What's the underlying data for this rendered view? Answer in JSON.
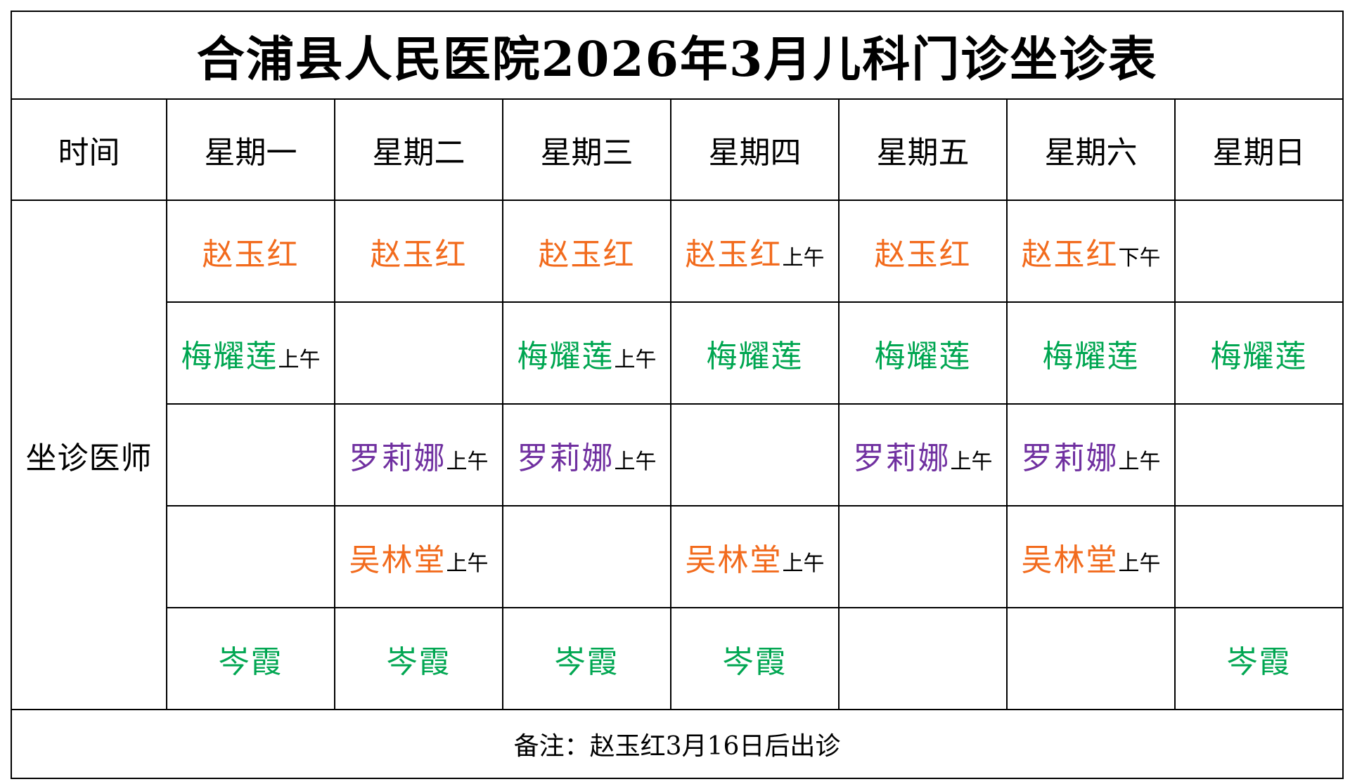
{
  "title": "合浦县人民医院2026年3月儿科门诊坐诊表",
  "header": {
    "time_label": "时间",
    "days": [
      "星期一",
      "星期二",
      "星期三",
      "星期四",
      "星期五",
      "星期六",
      "星期日"
    ]
  },
  "side_label": "坐诊医师",
  "colors": {
    "orange": "#F26B1D",
    "green": "#00A651",
    "purple": "#7030A0"
  },
  "schedule": [
    [
      {
        "name": "赵玉红",
        "note": "",
        "color": "orange"
      },
      {
        "name": "赵玉红",
        "note": "",
        "color": "orange"
      },
      {
        "name": "赵玉红",
        "note": "",
        "color": "orange"
      },
      {
        "name": "赵玉红",
        "note": "上午",
        "color": "orange"
      },
      {
        "name": "赵玉红",
        "note": "",
        "color": "orange"
      },
      {
        "name": "赵玉红",
        "note": "下午",
        "color": "orange"
      },
      {
        "name": "",
        "note": "",
        "color": ""
      }
    ],
    [
      {
        "name": "梅耀莲",
        "note": "上午",
        "color": "green"
      },
      {
        "name": "",
        "note": "",
        "color": ""
      },
      {
        "name": "梅耀莲",
        "note": "上午",
        "color": "green"
      },
      {
        "name": "梅耀莲",
        "note": "",
        "color": "green"
      },
      {
        "name": "梅耀莲",
        "note": "",
        "color": "green"
      },
      {
        "name": "梅耀莲",
        "note": "",
        "color": "green"
      },
      {
        "name": "梅耀莲",
        "note": "",
        "color": "green"
      }
    ],
    [
      {
        "name": "",
        "note": "",
        "color": ""
      },
      {
        "name": "罗莉娜",
        "note": "上午",
        "color": "purple"
      },
      {
        "name": "罗莉娜",
        "note": "上午",
        "color": "purple"
      },
      {
        "name": "",
        "note": "",
        "color": ""
      },
      {
        "name": "罗莉娜",
        "note": "上午",
        "color": "purple"
      },
      {
        "name": "罗莉娜",
        "note": "上午",
        "color": "purple"
      },
      {
        "name": "",
        "note": "",
        "color": ""
      }
    ],
    [
      {
        "name": "",
        "note": "",
        "color": ""
      },
      {
        "name": "吴林堂",
        "note": "上午",
        "color": "orange"
      },
      {
        "name": "",
        "note": "",
        "color": ""
      },
      {
        "name": "吴林堂",
        "note": "上午",
        "color": "orange"
      },
      {
        "name": "",
        "note": "",
        "color": ""
      },
      {
        "name": "吴林堂",
        "note": "上午",
        "color": "orange"
      },
      {
        "name": "",
        "note": "",
        "color": ""
      }
    ],
    [
      {
        "name": "岑霞",
        "note": "",
        "color": "green"
      },
      {
        "name": "岑霞",
        "note": "",
        "color": "green"
      },
      {
        "name": "岑霞",
        "note": "",
        "color": "green"
      },
      {
        "name": "岑霞",
        "note": "",
        "color": "green"
      },
      {
        "name": "",
        "note": "",
        "color": ""
      },
      {
        "name": "",
        "note": "",
        "color": ""
      },
      {
        "name": "岑霞",
        "note": "",
        "color": "green"
      }
    ]
  ],
  "footer_note": "备注：赵玉红3月16日后出诊"
}
